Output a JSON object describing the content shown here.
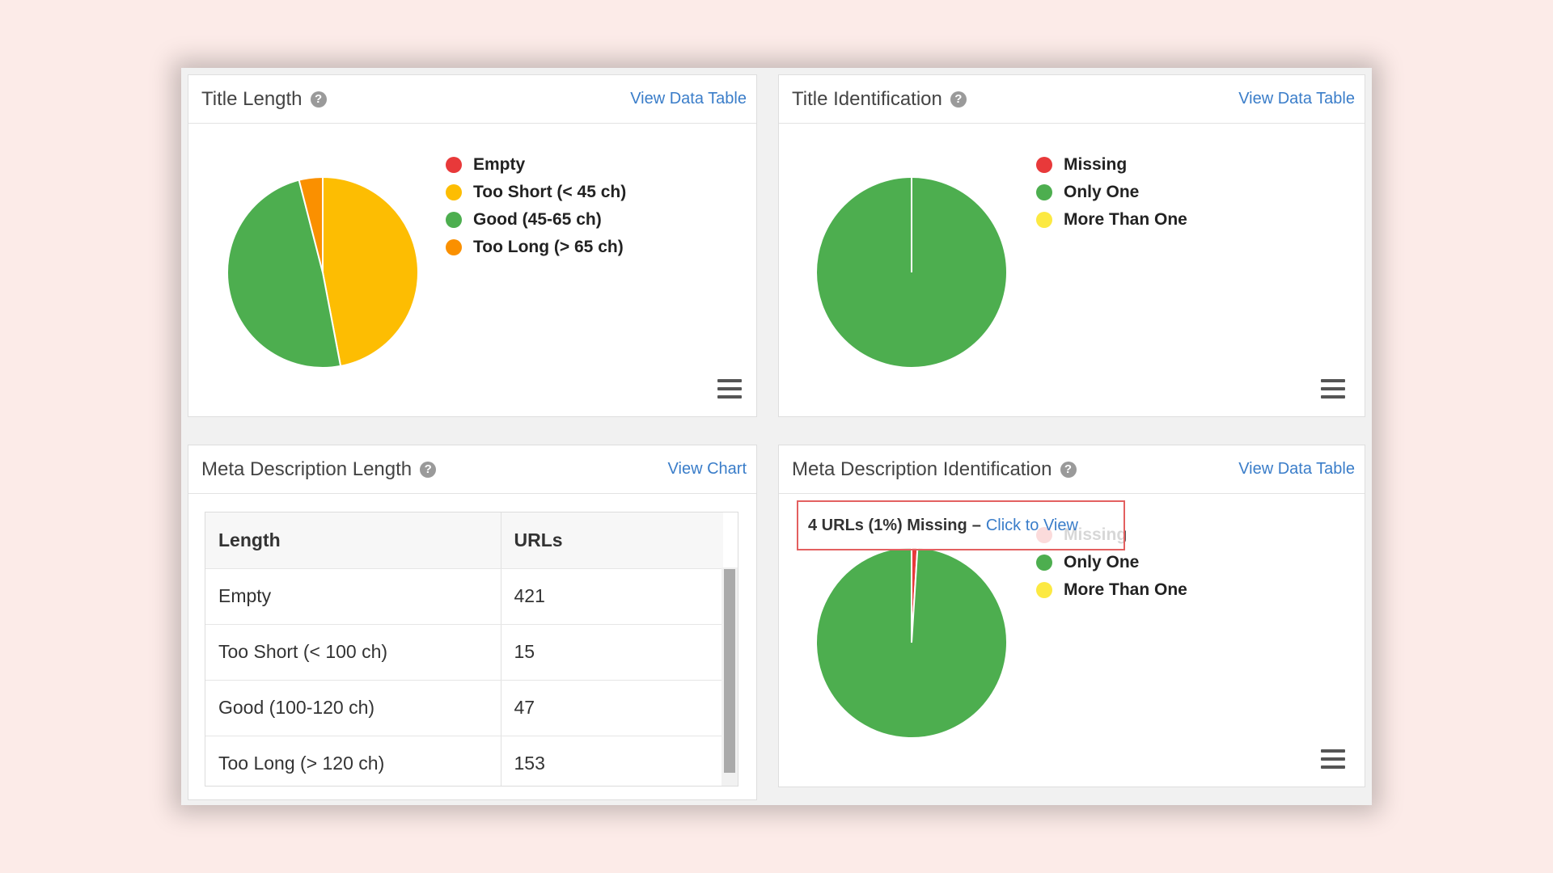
{
  "panels": {
    "title_length": {
      "title": "Title Length",
      "link": "View Data Table",
      "legend": [
        {
          "label": "Empty",
          "color": "#e8393a"
        },
        {
          "label": "Too Short (< 45 ch)",
          "color": "#fdbd02"
        },
        {
          "label": "Good (45-65 ch)",
          "color": "#4dae4f"
        },
        {
          "label": "Too Long (> 65 ch)",
          "color": "#fa9000"
        }
      ]
    },
    "title_identification": {
      "title": "Title Identification",
      "link": "View Data Table",
      "legend": [
        {
          "label": "Missing",
          "color": "#e8393a"
        },
        {
          "label": "Only One",
          "color": "#4dae4f"
        },
        {
          "label": "More Than One",
          "color": "#fce942"
        }
      ]
    },
    "meta_description_length": {
      "title": "Meta Description Length",
      "link": "View Chart",
      "table": {
        "headers": [
          "Length",
          "URLs"
        ],
        "rows": [
          [
            "Empty",
            "421"
          ],
          [
            "Too Short (< 100 ch)",
            "15"
          ],
          [
            "Good (100-120 ch)",
            "47"
          ],
          [
            "Too Long (> 120 ch)",
            "153"
          ]
        ]
      }
    },
    "meta_description_identification": {
      "title": "Meta Description Identification",
      "link": "View Data Table",
      "legend": [
        {
          "label": "Missing",
          "color": "#e8393a"
        },
        {
          "label": "Only One",
          "color": "#4dae4f"
        },
        {
          "label": "More Than One",
          "color": "#fce942"
        }
      ],
      "tooltip": {
        "text": "4 URLs (1%) Missing",
        "separator": "–",
        "link": "Click to View"
      }
    }
  },
  "chart_data": [
    {
      "type": "pie",
      "categories": [
        "Empty",
        "Too Short (< 45 ch)",
        "Good (45-65 ch)",
        "Too Long (> 65 ch)"
      ],
      "values": [
        0,
        47,
        49,
        4
      ],
      "colors": [
        "#e8393a",
        "#fdbd02",
        "#4dae4f",
        "#fa9000"
      ],
      "legend": "right"
    },
    {
      "type": "pie",
      "categories": [
        "Missing",
        "Only One",
        "More Than One"
      ],
      "values": [
        0,
        100,
        0
      ],
      "colors": [
        "#e8393a",
        "#4dae4f",
        "#fce942"
      ],
      "legend": "right"
    },
    {
      "type": "pie",
      "categories": [
        "Missing",
        "Only One",
        "More Than One"
      ],
      "values": [
        1,
        99,
        0
      ],
      "colors": [
        "#e8393a",
        "#4dae4f",
        "#fce942"
      ],
      "legend": "right"
    }
  ]
}
